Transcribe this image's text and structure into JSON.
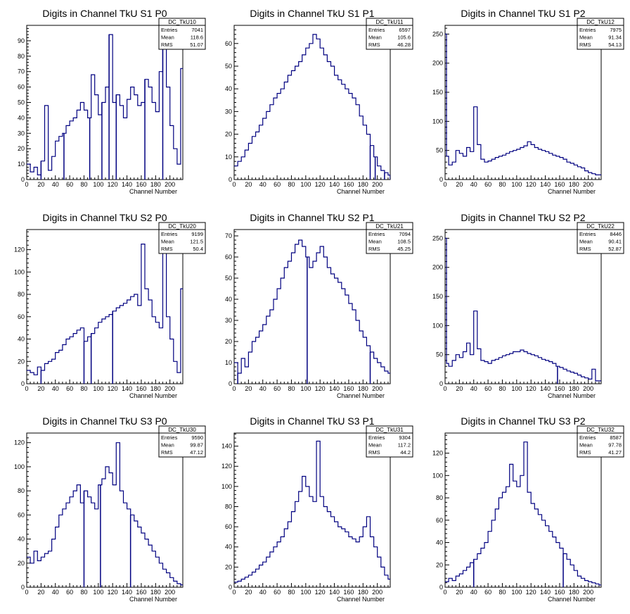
{
  "page": {
    "background": "#ffffff",
    "axis_label_x": "Channel Number",
    "line_color": "#000080",
    "stats_labels": [
      "Entries",
      "Mean",
      "RMS"
    ]
  },
  "chart_data": [
    {
      "type": "histogram",
      "title": "Digits in Channel TkU S1 P0",
      "xlabel": "Channel Number",
      "ylabel": "",
      "xlim": [
        0,
        218
      ],
      "ylim": [
        0,
        100
      ],
      "xticks": [
        0,
        20,
        40,
        60,
        80,
        100,
        120,
        140,
        160,
        180,
        200
      ],
      "yticks": [
        10,
        20,
        30,
        40,
        50,
        60,
        70,
        80,
        90
      ],
      "stats": {
        "name": "DC_TkU10",
        "entries": "7041",
        "mean": "118.6",
        "rms": "51.07"
      },
      "x": [
        0,
        5,
        10,
        15,
        20,
        25,
        30,
        35,
        40,
        45,
        50,
        55,
        60,
        65,
        70,
        75,
        80,
        85,
        90,
        95,
        100,
        105,
        110,
        115,
        120,
        125,
        130,
        135,
        140,
        145,
        150,
        155,
        160,
        165,
        170,
        175,
        180,
        185,
        190,
        195,
        200,
        205,
        210,
        215
      ],
      "y": [
        10,
        5,
        8,
        3,
        12,
        48,
        6,
        15,
        25,
        28,
        30,
        35,
        38,
        40,
        45,
        50,
        45,
        40,
        68,
        55,
        42,
        50,
        60,
        94,
        50,
        55,
        48,
        40,
        52,
        60,
        55,
        48,
        50,
        65,
        60,
        50,
        44,
        70,
        88,
        60,
        35,
        20,
        10,
        72
      ],
      "drops": [
        [
          20,
          0
        ],
        [
          52,
          0
        ],
        [
          88,
          0
        ],
        [
          105,
          0
        ],
        [
          115,
          0
        ],
        [
          125,
          0
        ],
        [
          165,
          0
        ],
        [
          190,
          0
        ]
      ]
    },
    {
      "type": "histogram",
      "title": "Digits in Channel TkU S1 P1",
      "xlabel": "Channel Number",
      "ylabel": "",
      "xlim": [
        0,
        218
      ],
      "ylim": [
        0,
        68
      ],
      "xticks": [
        0,
        20,
        40,
        60,
        80,
        100,
        120,
        140,
        160,
        180,
        200
      ],
      "yticks": [
        10,
        20,
        30,
        40,
        50,
        60
      ],
      "stats": {
        "name": "DC_TkU11",
        "entries": "6597",
        "mean": "105.6",
        "rms": "46.28"
      },
      "x": [
        0,
        5,
        10,
        15,
        20,
        25,
        30,
        35,
        40,
        45,
        50,
        55,
        60,
        65,
        70,
        75,
        80,
        85,
        90,
        95,
        100,
        105,
        110,
        115,
        120,
        125,
        130,
        135,
        140,
        145,
        150,
        155,
        160,
        165,
        170,
        175,
        180,
        185,
        190,
        195,
        200,
        205,
        210,
        215
      ],
      "y": [
        6,
        8,
        10,
        13,
        16,
        19,
        21,
        24,
        27,
        30,
        33,
        36,
        38,
        40,
        43,
        46,
        48,
        50,
        52,
        55,
        58,
        60,
        64,
        62,
        58,
        55,
        52,
        50,
        46,
        44,
        42,
        40,
        38,
        36,
        33,
        28,
        24,
        20,
        15,
        10,
        6,
        4,
        3,
        2
      ],
      "drops": [
        [
          190,
          0
        ],
        [
          197,
          0
        ],
        [
          210,
          0
        ],
        [
          218,
          0
        ]
      ]
    },
    {
      "type": "histogram",
      "title": "Digits in Channel TkU S1 P2",
      "xlabel": "Channel Number",
      "ylabel": "",
      "xlim": [
        0,
        218
      ],
      "ylim": [
        0,
        265
      ],
      "xticks": [
        0,
        20,
        40,
        60,
        80,
        100,
        120,
        140,
        160,
        180,
        200
      ],
      "yticks": [
        50,
        100,
        150,
        200,
        250
      ],
      "stats": {
        "name": "DC_TkU12",
        "entries": "7975",
        "mean": "91.34",
        "rms": "54.13"
      },
      "x": [
        0,
        2,
        5,
        10,
        15,
        20,
        25,
        30,
        35,
        40,
        45,
        50,
        55,
        60,
        65,
        70,
        75,
        80,
        85,
        90,
        95,
        100,
        105,
        110,
        115,
        120,
        125,
        130,
        135,
        140,
        145,
        150,
        155,
        160,
        165,
        170,
        175,
        180,
        185,
        190,
        195,
        200,
        205,
        210
      ],
      "y": [
        250,
        40,
        25,
        30,
        50,
        45,
        40,
        55,
        48,
        125,
        60,
        35,
        30,
        32,
        35,
        38,
        40,
        42,
        45,
        48,
        50,
        52,
        55,
        58,
        65,
        60,
        55,
        52,
        50,
        48,
        45,
        42,
        40,
        38,
        35,
        30,
        28,
        25,
        22,
        20,
        15,
        12,
        10,
        8
      ],
      "drops": []
    },
    {
      "type": "histogram",
      "title": "Digits in Channel TkU S2 P0",
      "xlabel": "Channel Number",
      "ylabel": "",
      "xlim": [
        0,
        218
      ],
      "ylim": [
        0,
        138
      ],
      "xticks": [
        0,
        20,
        40,
        60,
        80,
        100,
        120,
        140,
        160,
        180,
        200
      ],
      "yticks": [
        20,
        40,
        60,
        80,
        100,
        120
      ],
      "stats": {
        "name": "DC_TkU20",
        "entries": "9199",
        "mean": "121.5",
        "rms": "50.4"
      },
      "x": [
        0,
        5,
        10,
        15,
        20,
        25,
        30,
        35,
        40,
        45,
        50,
        55,
        60,
        65,
        70,
        75,
        80,
        85,
        90,
        95,
        100,
        105,
        110,
        115,
        120,
        125,
        130,
        135,
        140,
        145,
        150,
        155,
        160,
        165,
        170,
        175,
        180,
        185,
        190,
        195,
        200,
        205,
        210,
        215
      ],
      "y": [
        12,
        10,
        8,
        15,
        12,
        18,
        20,
        22,
        28,
        30,
        35,
        40,
        42,
        45,
        48,
        50,
        38,
        42,
        45,
        50,
        55,
        58,
        60,
        62,
        65,
        68,
        70,
        72,
        75,
        78,
        80,
        70,
        125,
        85,
        75,
        60,
        55,
        50,
        135,
        60,
        40,
        20,
        10,
        85
      ],
      "drops": [
        [
          20,
          0
        ],
        [
          80,
          0
        ],
        [
          90,
          0
        ],
        [
          120,
          0
        ]
      ]
    },
    {
      "type": "histogram",
      "title": "Digits in Channel TkU S2 P1",
      "xlabel": "Channel Number",
      "ylabel": "",
      "xlim": [
        0,
        218
      ],
      "ylim": [
        0,
        73
      ],
      "xticks": [
        0,
        20,
        40,
        60,
        80,
        100,
        120,
        140,
        160,
        180,
        200
      ],
      "yticks": [
        10,
        20,
        30,
        40,
        50,
        60,
        70
      ],
      "stats": {
        "name": "DC_TkU21",
        "entries": "7094",
        "mean": "108.5",
        "rms": "45.25"
      },
      "x": [
        0,
        5,
        10,
        15,
        20,
        25,
        30,
        35,
        40,
        45,
        50,
        55,
        60,
        65,
        70,
        75,
        80,
        85,
        90,
        95,
        100,
        105,
        110,
        115,
        120,
        125,
        130,
        135,
        140,
        145,
        150,
        155,
        160,
        165,
        170,
        175,
        180,
        185,
        190,
        195,
        200,
        205,
        210,
        215
      ],
      "y": [
        10,
        5,
        12,
        8,
        15,
        20,
        22,
        25,
        28,
        32,
        35,
        40,
        45,
        50,
        55,
        58,
        62,
        66,
        68,
        65,
        60,
        55,
        58,
        62,
        65,
        60,
        55,
        52,
        50,
        48,
        45,
        42,
        38,
        35,
        30,
        25,
        22,
        18,
        15,
        12,
        10,
        8,
        6,
        5
      ],
      "drops": [
        [
          5,
          0
        ],
        [
          102,
          0
        ],
        [
          190,
          0
        ]
      ]
    },
    {
      "type": "histogram",
      "title": "Digits in Channel TkU S2 P2",
      "xlabel": "Channel Number",
      "ylabel": "",
      "xlim": [
        0,
        218
      ],
      "ylim": [
        0,
        265
      ],
      "xticks": [
        0,
        20,
        40,
        60,
        80,
        100,
        120,
        140,
        160,
        180,
        200
      ],
      "yticks": [
        50,
        100,
        150,
        200,
        250
      ],
      "stats": {
        "name": "DC_TkU22",
        "entries": "8446",
        "mean": "90.41",
        "rms": "52.87"
      },
      "x": [
        0,
        2,
        5,
        10,
        15,
        20,
        25,
        30,
        35,
        40,
        45,
        50,
        55,
        60,
        65,
        70,
        75,
        80,
        85,
        90,
        95,
        100,
        105,
        110,
        115,
        120,
        125,
        130,
        135,
        140,
        145,
        150,
        155,
        160,
        165,
        170,
        175,
        180,
        185,
        190,
        195,
        200,
        205,
        210
      ],
      "y": [
        250,
        35,
        30,
        40,
        50,
        45,
        55,
        70,
        50,
        125,
        60,
        40,
        38,
        35,
        40,
        42,
        45,
        48,
        50,
        52,
        55,
        55,
        58,
        55,
        52,
        50,
        48,
        45,
        42,
        40,
        38,
        35,
        30,
        28,
        25,
        22,
        20,
        18,
        15,
        12,
        10,
        8,
        25,
        5
      ],
      "drops": [
        [
          157,
          0
        ]
      ]
    },
    {
      "type": "histogram",
      "title": "Digits in Channel TkU S3 P0",
      "xlabel": "Channel Number",
      "ylabel": "",
      "xlim": [
        0,
        218
      ],
      "ylim": [
        0,
        128
      ],
      "xticks": [
        0,
        20,
        40,
        60,
        80,
        100,
        120,
        140,
        160,
        180,
        200
      ],
      "yticks": [
        20,
        40,
        60,
        80,
        100,
        120
      ],
      "stats": {
        "name": "DC_TkU30",
        "entries": "9590",
        "mean": "99.87",
        "rms": "47.12"
      },
      "x": [
        0,
        5,
        10,
        15,
        20,
        25,
        30,
        35,
        40,
        45,
        50,
        55,
        60,
        65,
        70,
        75,
        80,
        85,
        90,
        95,
        100,
        105,
        110,
        115,
        120,
        125,
        130,
        135,
        140,
        145,
        150,
        155,
        160,
        165,
        170,
        175,
        180,
        185,
        190,
        195,
        200,
        205,
        210,
        215
      ],
      "y": [
        25,
        20,
        30,
        22,
        25,
        28,
        30,
        40,
        50,
        60,
        65,
        70,
        75,
        80,
        85,
        70,
        80,
        75,
        70,
        65,
        85,
        90,
        100,
        95,
        85,
        120,
        80,
        70,
        65,
        60,
        55,
        50,
        45,
        40,
        35,
        30,
        25,
        20,
        15,
        12,
        8,
        5,
        3,
        2
      ],
      "drops": [
        [
          80,
          0
        ],
        [
          103,
          0
        ],
        [
          145,
          0
        ]
      ]
    },
    {
      "type": "histogram",
      "title": "Digits in Channel TkU S3 P1",
      "xlabel": "Channel Number",
      "ylabel": "",
      "xlim": [
        0,
        218
      ],
      "ylim": [
        0,
        153
      ],
      "xticks": [
        0,
        20,
        40,
        60,
        80,
        100,
        120,
        140,
        160,
        180,
        200
      ],
      "yticks": [
        20,
        40,
        60,
        80,
        100,
        120,
        140
      ],
      "stats": {
        "name": "DC_TkU31",
        "entries": "9304",
        "mean": "117.2",
        "rms": "44.2"
      },
      "x": [
        0,
        5,
        10,
        15,
        20,
        25,
        30,
        35,
        40,
        45,
        50,
        55,
        60,
        65,
        70,
        75,
        80,
        85,
        90,
        95,
        100,
        105,
        110,
        115,
        120,
        125,
        130,
        135,
        140,
        145,
        150,
        155,
        160,
        165,
        170,
        175,
        180,
        185,
        190,
        195,
        200,
        205,
        210,
        215
      ],
      "y": [
        5,
        6,
        8,
        10,
        12,
        15,
        18,
        22,
        25,
        30,
        35,
        40,
        45,
        50,
        58,
        65,
        75,
        85,
        95,
        110,
        100,
        90,
        85,
        145,
        90,
        80,
        75,
        70,
        65,
        60,
        58,
        55,
        50,
        48,
        45,
        50,
        60,
        70,
        50,
        40,
        30,
        20,
        12,
        8
      ],
      "drops": []
    },
    {
      "type": "histogram",
      "title": "Digits in Channel TkU S3 P2",
      "xlabel": "Channel Number",
      "ylabel": "",
      "xlim": [
        0,
        218
      ],
      "ylim": [
        0,
        138
      ],
      "xticks": [
        0,
        20,
        40,
        60,
        80,
        100,
        120,
        140,
        160,
        180,
        200
      ],
      "yticks": [
        20,
        40,
        60,
        80,
        100,
        120
      ],
      "stats": {
        "name": "DC_TkU32",
        "entries": "8587",
        "mean": "97.78",
        "rms": "41.27"
      },
      "x": [
        0,
        5,
        10,
        15,
        20,
        25,
        30,
        35,
        40,
        45,
        50,
        55,
        60,
        65,
        70,
        75,
        80,
        85,
        90,
        95,
        100,
        105,
        110,
        115,
        120,
        125,
        130,
        135,
        140,
        145,
        150,
        155,
        160,
        165,
        170,
        175,
        180,
        185,
        190,
        195,
        200,
        205,
        210,
        215
      ],
      "y": [
        5,
        8,
        6,
        10,
        12,
        15,
        18,
        22,
        25,
        30,
        35,
        40,
        50,
        60,
        70,
        80,
        85,
        90,
        110,
        95,
        90,
        100,
        130,
        85,
        75,
        70,
        65,
        60,
        55,
        50,
        45,
        40,
        35,
        30,
        25,
        20,
        15,
        10,
        8,
        6,
        5,
        4,
        3,
        2
      ],
      "drops": [
        [
          40,
          0
        ],
        [
          165,
          0
        ]
      ]
    }
  ]
}
